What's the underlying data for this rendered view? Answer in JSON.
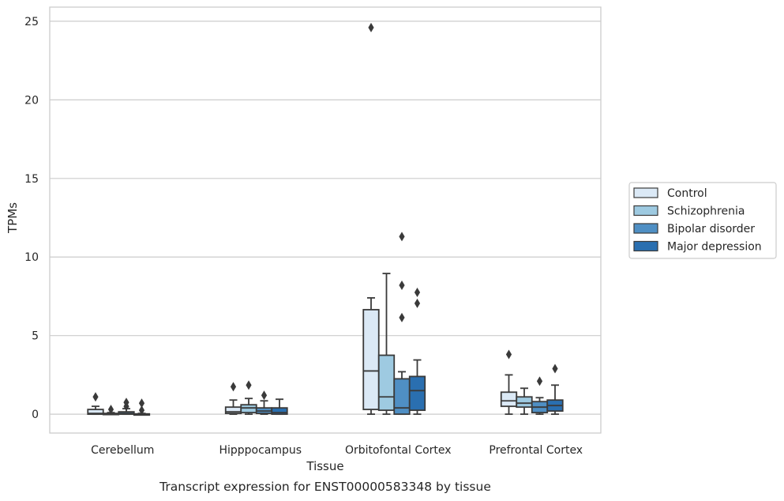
{
  "chart_data": {
    "type": "box",
    "title": "",
    "caption": "Transcript expression for ENST00000583348 by tissue",
    "xlabel": "Tissue",
    "ylabel": "TPMs",
    "ylim": [
      -1.2,
      25.9
    ],
    "yticks": [
      0,
      5,
      10,
      15,
      20,
      25
    ],
    "grid": "horizontal",
    "legend_position": "right",
    "categories": [
      "Cerebellum",
      "Hipppocampus",
      "Orbitofontal Cortex",
      "Prefrontal Cortex"
    ],
    "series": [
      {
        "name": "Control",
        "color": "#dbe9f6",
        "boxes": [
          {
            "q1": 0.0,
            "median": 0.05,
            "q3": 0.3,
            "whisker_low": 0.0,
            "whisker_high": 0.5,
            "outliers": [
              1.1
            ]
          },
          {
            "q1": 0.05,
            "median": 0.15,
            "q3": 0.45,
            "whisker_low": 0.0,
            "whisker_high": 0.9,
            "outliers": [
              1.75
            ]
          },
          {
            "q1": 0.3,
            "median": 2.75,
            "q3": 6.65,
            "whisker_low": 0.0,
            "whisker_high": 7.4,
            "outliers": [
              24.6
            ]
          },
          {
            "q1": 0.5,
            "median": 0.85,
            "q3": 1.4,
            "whisker_low": 0.0,
            "whisker_high": 2.5,
            "outliers": [
              3.8
            ]
          }
        ]
      },
      {
        "name": "Schizophrenia",
        "color": "#9ecae1",
        "boxes": [
          {
            "q1": 0.0,
            "median": 0.0,
            "q3": 0.05,
            "whisker_low": 0.0,
            "whisker_high": 0.1,
            "outliers": [
              0.3
            ]
          },
          {
            "q1": 0.1,
            "median": 0.4,
            "q3": 0.6,
            "whisker_low": 0.0,
            "whisker_high": 1.0,
            "outliers": [
              1.85
            ]
          },
          {
            "q1": 0.25,
            "median": 1.1,
            "q3": 3.75,
            "whisker_low": 0.0,
            "whisker_high": 8.95,
            "outliers": []
          },
          {
            "q1": 0.45,
            "median": 0.7,
            "q3": 1.1,
            "whisker_low": 0.0,
            "whisker_high": 1.65,
            "outliers": []
          }
        ]
      },
      {
        "name": "Bipolar disorder",
        "color": "#4f8fc4",
        "boxes": [
          {
            "q1": 0.0,
            "median": 0.05,
            "q3": 0.15,
            "whisker_low": 0.0,
            "whisker_high": 0.35,
            "outliers": [
              0.5,
              0.75
            ]
          },
          {
            "q1": 0.05,
            "median": 0.2,
            "q3": 0.4,
            "whisker_low": 0.0,
            "whisker_high": 0.85,
            "outliers": [
              1.2
            ]
          },
          {
            "q1": 0.0,
            "median": 0.4,
            "q3": 2.25,
            "whisker_low": 0.0,
            "whisker_high": 2.7,
            "outliers": [
              6.15,
              8.2,
              11.3
            ]
          },
          {
            "q1": 0.1,
            "median": 0.45,
            "q3": 0.8,
            "whisker_low": 0.0,
            "whisker_high": 1.05,
            "outliers": [
              2.1
            ]
          }
        ]
      },
      {
        "name": "Major depression",
        "color": "#2a6fb0",
        "boxes": [
          {
            "q1": 0.0,
            "median": 0.0,
            "q3": 0.02,
            "whisker_low": 0.0,
            "whisker_high": 0.05,
            "outliers": [
              0.25,
              0.7
            ]
          },
          {
            "q1": 0.0,
            "median": 0.1,
            "q3": 0.4,
            "whisker_low": 0.0,
            "whisker_high": 0.95,
            "outliers": []
          },
          {
            "q1": 0.25,
            "median": 1.5,
            "q3": 2.4,
            "whisker_low": 0.0,
            "whisker_high": 3.45,
            "outliers": [
              7.05,
              7.75
            ]
          },
          {
            "q1": 0.2,
            "median": 0.55,
            "q3": 0.9,
            "whisker_low": 0.0,
            "whisker_high": 1.85,
            "outliers": [
              2.9
            ]
          }
        ]
      }
    ]
  }
}
